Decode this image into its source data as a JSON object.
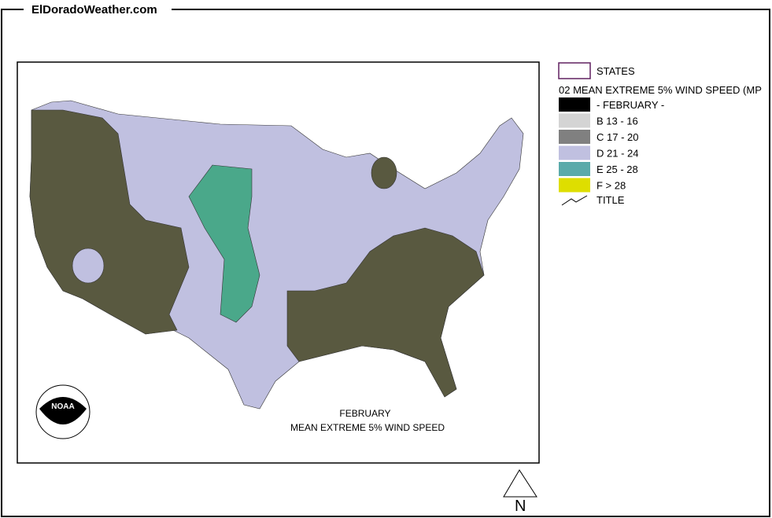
{
  "header": {
    "site": "ElDoradoWeather.com"
  },
  "legend": {
    "states": "STATES",
    "layer": "02 MEAN EXTREME 5% WIND SPEED (MP",
    "items": [
      {
        "label": "- FEBRUARY -",
        "color": "#000000"
      },
      {
        "label": "B 13 - 16",
        "color": "#d4d4d4"
      },
      {
        "label": "C 17 - 20",
        "color": "#808080"
      },
      {
        "label": "D 21 - 24",
        "color": "#c0c0e0"
      },
      {
        "label": "E 25 - 28",
        "color": "#5aaaaa"
      },
      {
        "label": "F > 28",
        "color": "#dede00"
      }
    ],
    "title": "TITLE"
  },
  "map": {
    "caption": [
      "FEBRUARY",
      "MEAN EXTREME 5% WIND SPEED"
    ],
    "logo": "NOAA",
    "north": "N"
  }
}
